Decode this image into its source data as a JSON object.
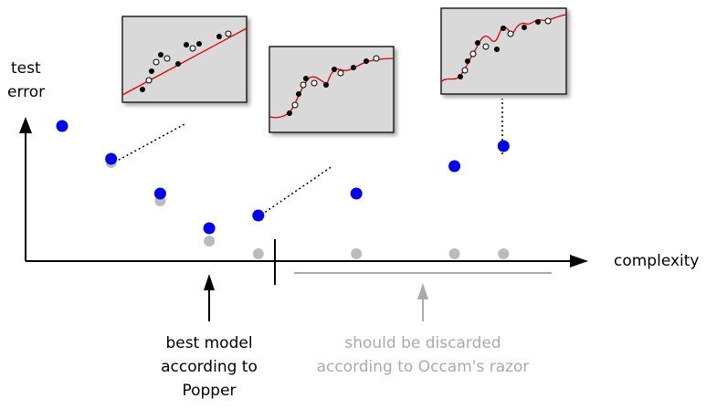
{
  "axes": {
    "y_label_line1": "test",
    "y_label_line2": "error",
    "x_label": "complexity"
  },
  "annotations": {
    "best_model_line1": "best model",
    "best_model_line2": "according to",
    "best_model_line3": "Popper",
    "discard_line1": "should be discarded",
    "discard_line2": "according to Occam's razor"
  },
  "colors": {
    "test_point": "#0000ee",
    "train_point": "#bbbbbb",
    "fit_curve": "#dd0000",
    "inset_background": "#d9d9d9",
    "discard_text": "#aaaaaa"
  },
  "chart_data": {
    "type": "scatter",
    "series": [
      {
        "color": "#0000ee",
        "x": [
          1,
          2,
          3,
          4,
          5,
          7,
          9,
          10
        ],
        "y": [
          0.74,
          0.56,
          0.37,
          0.18,
          0.25,
          0.37,
          0.52,
          0.63
        ]
      },
      {
        "color": "#bbbbbb",
        "x": [
          2,
          3,
          4,
          5,
          7,
          9,
          10
        ],
        "y": [
          0.54,
          0.33,
          0.11,
          0.04,
          0.04,
          0.04,
          0.04
        ]
      }
    ],
    "insets": [
      {
        "attached_to_x": 2,
        "fit": "linear"
      },
      {
        "attached_to_x": 5,
        "fit": "smooth"
      },
      {
        "attached_to_x": 10,
        "fit": "wiggly"
      }
    ]
  }
}
